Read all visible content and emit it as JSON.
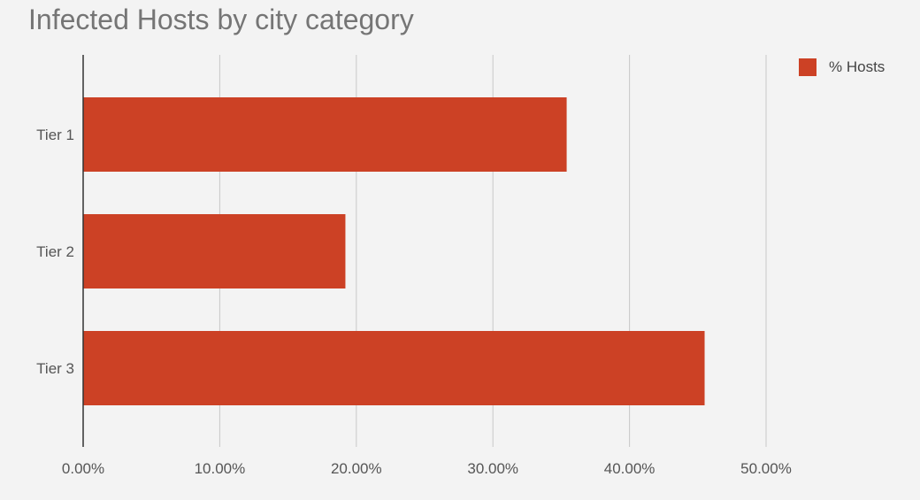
{
  "chart_data": {
    "type": "bar",
    "orientation": "horizontal",
    "title": "Infected Hosts by city category",
    "categories": [
      "Tier 1",
      "Tier 2",
      "Tier 3"
    ],
    "series": [
      {
        "name": "% Hosts",
        "values": [
          35.4,
          19.2,
          45.5
        ],
        "color": "#cc4125"
      }
    ],
    "xlim": [
      0,
      50
    ],
    "x_ticks": [
      "0.00%",
      "10.00%",
      "20.00%",
      "30.00%",
      "40.00%",
      "50.00%"
    ],
    "grid": true,
    "legend_position": "top-right"
  }
}
